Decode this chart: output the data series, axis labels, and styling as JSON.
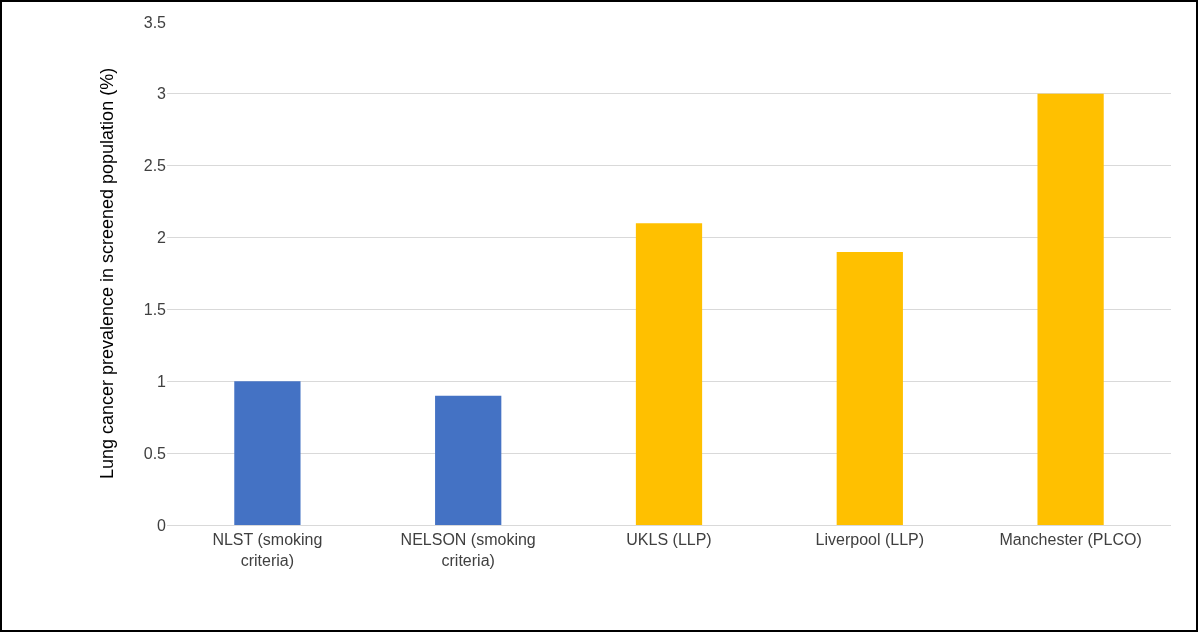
{
  "chart_data": {
    "type": "bar",
    "ylabel": "Lung cancer prevalence in screened population (%)",
    "categories": [
      "NLST (smoking criteria)",
      "NELSON (smoking criteria)",
      "UKLS (LLP)",
      "Liverpool (LLP)",
      "Manchester (PLCO)"
    ],
    "values": [
      1,
      0.9,
      2.1,
      1.9,
      3
    ],
    "colors": [
      "#4472c4",
      "#4472c4",
      "#ffc000",
      "#ffc000",
      "#ffc000"
    ],
    "ylim": [
      0,
      3.5
    ],
    "yticks": [
      0,
      0.5,
      1,
      1.5,
      2,
      2.5,
      3,
      3.5
    ],
    "grid": "y"
  }
}
